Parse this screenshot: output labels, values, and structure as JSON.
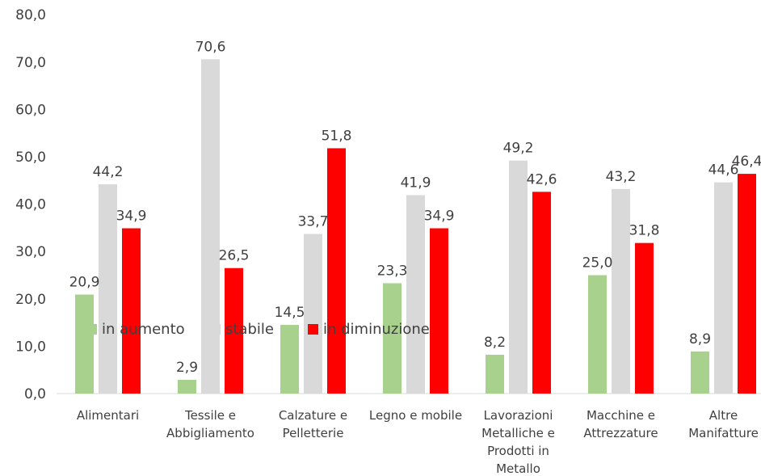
{
  "chart_data": {
    "type": "bar",
    "title": "",
    "xlabel": "",
    "ylabel": "",
    "ylim": [
      0,
      80
    ],
    "yticks": [
      "0,0",
      "10,0",
      "20,0",
      "30,0",
      "40,0",
      "50,0",
      "60,0",
      "70,0",
      "80,0"
    ],
    "categories": [
      [
        "Alimentari"
      ],
      [
        "Tessile e",
        "Abbigliamento"
      ],
      [
        "Calzature e",
        "Pelletterie"
      ],
      [
        "Legno e mobile"
      ],
      [
        "Lavorazioni",
        "Metalliche e",
        "Prodotti in",
        "Metallo"
      ],
      [
        "Macchine e",
        "Attrezzature"
      ],
      [
        "Altre",
        "Manifatture"
      ]
    ],
    "series": [
      {
        "name": "in aumento",
        "color": "#a9d18e",
        "values": [
          20.9,
          2.9,
          14.5,
          23.3,
          8.2,
          25.0,
          8.9
        ],
        "labels": [
          "20,9",
          "2,9",
          "14,5",
          "23,3",
          "8,2",
          "25,0",
          "8,9"
        ]
      },
      {
        "name": "stabile",
        "color": "#d9d9d9",
        "values": [
          44.2,
          70.6,
          33.7,
          41.9,
          49.2,
          43.2,
          44.6
        ],
        "labels": [
          "44,2",
          "70,6",
          "33,7",
          "41,9",
          "49,2",
          "43,2",
          "44,6"
        ]
      },
      {
        "name": "in diminuzione",
        "color": "#ff0000",
        "values": [
          34.9,
          26.5,
          51.8,
          34.9,
          42.6,
          31.8,
          46.4
        ],
        "labels": [
          "34,9",
          "26,5",
          "51,8",
          "34,9",
          "42,6",
          "31,8",
          "46,4"
        ]
      }
    ],
    "grid": false,
    "legend": "bottom-left"
  }
}
